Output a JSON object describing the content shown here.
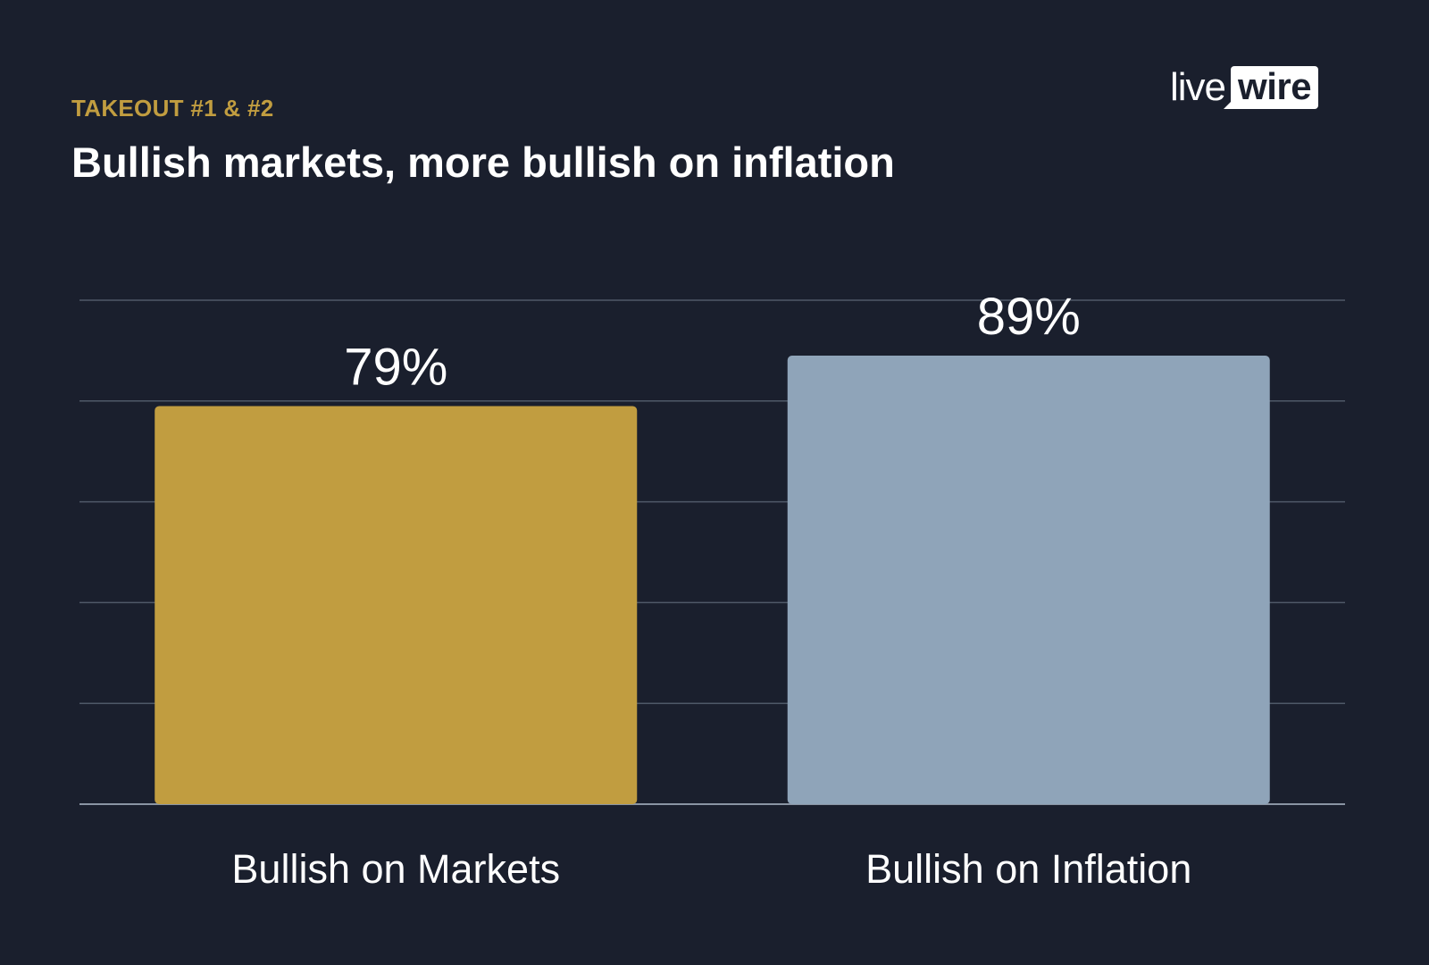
{
  "header": {
    "kicker": "TAKEOUT #1 & #2",
    "title": "Bullish markets, more bullish on inflation"
  },
  "logo": {
    "part1": "live",
    "part2": "wire"
  },
  "chart_data": {
    "type": "bar",
    "categories": [
      "Bullish on Markets",
      "Bullish on Inflation"
    ],
    "values": [
      79,
      89
    ],
    "value_labels": [
      "79%",
      "89%"
    ],
    "colors": [
      "#c19d40",
      "#8fa4b9"
    ],
    "title": "Bullish markets, more bullish on inflation",
    "xlabel": "",
    "ylabel": "",
    "ylim": [
      0,
      100
    ],
    "grid": true,
    "grid_step": 20,
    "legend": "none"
  }
}
